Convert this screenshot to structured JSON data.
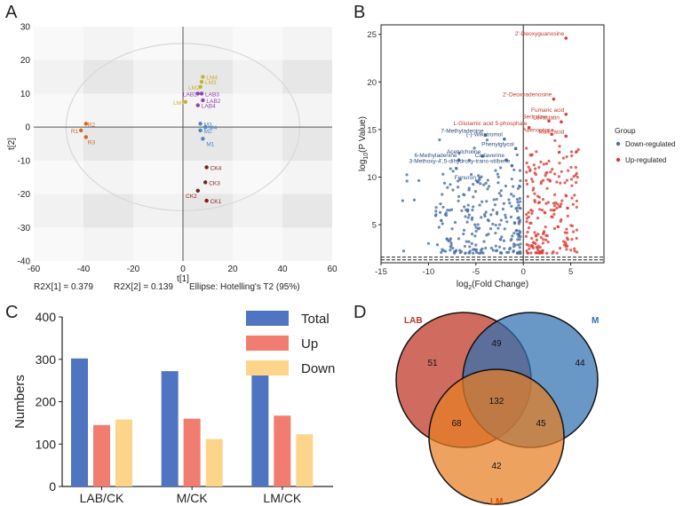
{
  "panels": {
    "a": "A",
    "b": "B",
    "c": "C",
    "d": "D"
  },
  "chart_data": [
    {
      "id": "A",
      "type": "scatter",
      "xlabel": "t[1]",
      "ylabel": "t[2]",
      "xlim": [
        -60,
        60
      ],
      "ylim": [
        -40,
        30
      ],
      "xticks": [
        "-60",
        "-40",
        "-20",
        "0",
        "20",
        "40",
        "60"
      ],
      "yticks": [
        "30",
        "20",
        "10",
        "0",
        "-10",
        "-20",
        "-30",
        "-40"
      ],
      "footer": [
        "R2X[1] = 0.379",
        "R2X[2] = 0.139",
        "Ellipse: Hotelling's T2 (95%)"
      ],
      "colors": {
        "LM": "#c8b030",
        "LAB": "#8e44ad",
        "M": "#4a86c8",
        "CK": "#7b1f1f",
        "R": "#d2691e"
      },
      "points": [
        {
          "label": "LM4",
          "group": "LM",
          "x": 8,
          "y": 15
        },
        {
          "label": "LM3",
          "group": "LM",
          "x": 7.5,
          "y": 13.5
        },
        {
          "label": "LM2",
          "group": "LM",
          "x": 7,
          "y": 12
        },
        {
          "label": "LM1",
          "group": "LM",
          "x": 1,
          "y": 7.5
        },
        {
          "label": "LAB1",
          "group": "LAB",
          "x": 6,
          "y": 10
        },
        {
          "label": "LAB3",
          "group": "LAB",
          "x": 7.5,
          "y": 10
        },
        {
          "label": "LAB2",
          "group": "LAB",
          "x": 8,
          "y": 8
        },
        {
          "label": "LAB4",
          "group": "LAB",
          "x": 6,
          "y": 6.5
        },
        {
          "label": "M3",
          "group": "M",
          "x": 7,
          "y": 1
        },
        {
          "label": "M4",
          "group": "M",
          "x": 9,
          "y": 0
        },
        {
          "label": "M2",
          "group": "M",
          "x": 7,
          "y": -1
        },
        {
          "label": "M1",
          "group": "M",
          "x": 8,
          "y": -3.5
        },
        {
          "label": "CK4",
          "group": "CK",
          "x": 9.5,
          "y": -12
        },
        {
          "label": "CK3",
          "group": "CK",
          "x": 9,
          "y": -16.5
        },
        {
          "label": "CK2",
          "group": "CK",
          "x": 6,
          "y": -19
        },
        {
          "label": "CK1",
          "group": "CK",
          "x": 9.5,
          "y": -22
        },
        {
          "label": "R2",
          "group": "R",
          "x": -39,
          "y": 1
        },
        {
          "label": "R1",
          "group": "R",
          "x": -41,
          "y": -1
        },
        {
          "label": "R3",
          "group": "R",
          "x": -39,
          "y": -3
        }
      ]
    },
    {
      "id": "B",
      "type": "scatter",
      "xlabel_main": "log",
      "xlabel_sub": "2",
      "xlabel_rest": "(Fold Change)",
      "ylabel_main": "log",
      "ylabel_sub": "10",
      "ylabel_rest": "(P Value)",
      "xlim": [
        -15,
        8.5
      ],
      "ylim": [
        1,
        26
      ],
      "xticks": [
        -15,
        -10,
        -5,
        0,
        5
      ],
      "yticks": [
        5,
        10,
        15,
        20,
        25
      ],
      "legend_title": "Group",
      "legend": [
        {
          "name": "Down-regulated",
          "color": "#4a6fa5"
        },
        {
          "name": "Up-regulated",
          "color": "#d9403a"
        }
      ],
      "up_labels": [
        {
          "text": "2'-Deoxyguanosine",
          "x": 4.5,
          "y": 24.6
        },
        {
          "text": "2'-Deoxyadenosine",
          "x": 3.2,
          "y": 18.2
        },
        {
          "text": "Fumaric acid",
          "x": 4.5,
          "y": 16.6
        },
        {
          "text": "Lovastatin",
          "x": 4.0,
          "y": 15.8
        },
        {
          "text": "Sertraline",
          "x": 2.7,
          "y": 15.9
        },
        {
          "text": "L-Glutamic acid 5-phosphate",
          "x": 0.6,
          "y": 15.2
        },
        {
          "text": "Adenosine",
          "x": 3.0,
          "y": 14.5
        },
        {
          "text": "Malic acid",
          "x": 4.5,
          "y": 14.3
        }
      ],
      "down_labels": [
        {
          "text": "7-Methyladenine",
          "x": -4.0,
          "y": 14.4
        },
        {
          "text": "(-)-Wikstromol",
          "x": -2.0,
          "y": 14.0
        },
        {
          "text": "Acetylcholine",
          "x": -4.3,
          "y": 12.2
        },
        {
          "text": "Cadaverine",
          "x": -1.8,
          "y": 11.8
        },
        {
          "text": "6-Methyladenine",
          "x": -6.8,
          "y": 11.8
        },
        {
          "text": "Phenylglycol",
          "x": -0.8,
          "y": 13.0
        },
        {
          "text": "3-Methoxy-4',5-dihydroxy-trans-stilbene",
          "x": -1.2,
          "y": 11.2
        },
        {
          "text": "Fenuron",
          "x": -4.8,
          "y": 9.5
        }
      ]
    },
    {
      "id": "C",
      "type": "bar",
      "categories": [
        "LAB/CK",
        "M/CK",
        "LM/CK"
      ],
      "series": [
        {
          "name": "Total",
          "values": [
            302,
            272,
            289
          ],
          "color": "#4f74c2"
        },
        {
          "name": "Up",
          "values": [
            145,
            160,
            167
          ],
          "color": "#f17c70"
        },
        {
          "name": "Down",
          "values": [
            158,
            112,
            123
          ],
          "color": "#fcd58a"
        }
      ],
      "ylabel": "Numbers",
      "ylim": [
        0,
        400
      ],
      "yticks": [
        0,
        100,
        200,
        300,
        400
      ]
    },
    {
      "id": "D",
      "type": "venn",
      "sets": [
        {
          "name": "LAB",
          "color": "#c0392b"
        },
        {
          "name": "M",
          "color": "#2f6fb0"
        },
        {
          "name": "LM",
          "color": "#e67e22"
        }
      ],
      "regions": {
        "LAB_only": "51",
        "M_only": "44",
        "LM_only": "42",
        "LAB_M": "49",
        "LAB_LM": "68",
        "M_LM": "45",
        "all": "132"
      }
    }
  ]
}
